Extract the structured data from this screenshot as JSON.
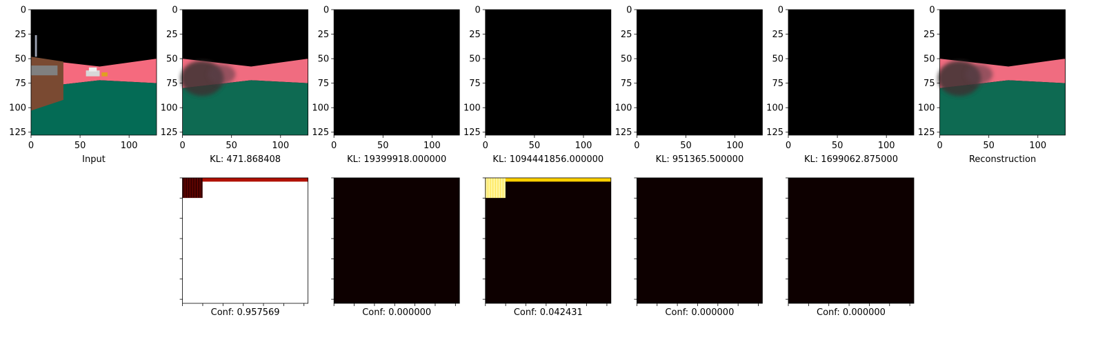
{
  "chart_data": {
    "type": "image_grid",
    "image_panels": [
      {
        "id": "input",
        "caption": "Input",
        "xlim": [
          0,
          128
        ],
        "ylim": [
          128,
          0
        ],
        "xticks": [
          "0",
          "50",
          "100"
        ],
        "yticks": [
          "0",
          "25",
          "50",
          "75",
          "100",
          "125"
        ],
        "content": "scene",
        "colors": {
          "sky": "#000000",
          "band": "#f56a7e",
          "ground": "#046b55",
          "wall": "#7a4a32"
        }
      },
      {
        "id": "recon-1",
        "caption": "KL: 471.868408",
        "xlim": [
          0,
          128
        ],
        "ylim": [
          128,
          0
        ],
        "xticks": [
          "0",
          "50",
          "100"
        ],
        "yticks": [
          "0",
          "25",
          "50",
          "75",
          "100",
          "125"
        ],
        "content": "blurry-scene",
        "colors": {
          "sky": "#000000",
          "band": "#f06c80",
          "ground": "#0e6a52"
        }
      },
      {
        "id": "recon-2",
        "caption": "KL: 19399918.000000",
        "xlim": [
          0,
          128
        ],
        "ylim": [
          128,
          0
        ],
        "xticks": [
          "0",
          "50",
          "100"
        ],
        "yticks": [
          "0",
          "25",
          "50",
          "75",
          "100",
          "125"
        ],
        "content": "black",
        "colors": {
          "fill": "#000000"
        }
      },
      {
        "id": "recon-3",
        "caption": "KL: 1094441856.000000",
        "xlim": [
          0,
          128
        ],
        "ylim": [
          128,
          0
        ],
        "xticks": [
          "0",
          "50",
          "100"
        ],
        "yticks": [
          "0",
          "25",
          "50",
          "75",
          "100",
          "125"
        ],
        "content": "black",
        "colors": {
          "fill": "#000000"
        }
      },
      {
        "id": "recon-4",
        "caption": "KL: 951365.500000",
        "xlim": [
          0,
          128
        ],
        "ylim": [
          128,
          0
        ],
        "xticks": [
          "0",
          "50",
          "100"
        ],
        "yticks": [
          "0",
          "25",
          "50",
          "75",
          "100",
          "125"
        ],
        "content": "black",
        "colors": {
          "fill": "#000000"
        }
      },
      {
        "id": "recon-5",
        "caption": "KL: 1699062.875000",
        "xlim": [
          0,
          128
        ],
        "ylim": [
          128,
          0
        ],
        "xticks": [
          "0",
          "50",
          "100"
        ],
        "yticks": [
          "0",
          "25",
          "50",
          "75",
          "100",
          "125"
        ],
        "content": "black",
        "colors": {
          "fill": "#000000"
        }
      },
      {
        "id": "reconstruction",
        "caption": "Reconstruction",
        "xlim": [
          0,
          128
        ],
        "ylim": [
          128,
          0
        ],
        "xticks": [
          "0",
          "50",
          "100"
        ],
        "yticks": [
          "0",
          "25",
          "50",
          "75",
          "100",
          "125"
        ],
        "content": "blurry-scene",
        "colors": {
          "sky": "#000000",
          "band": "#f06c80",
          "ground": "#0e6a52"
        }
      }
    ],
    "confidence_panels": [
      {
        "id": "conf-1",
        "caption": "Conf: 0.957569",
        "value": 0.957569,
        "content": "white-with-dark-corner",
        "colors": {
          "background": "#ffffff",
          "corner": "#3a0000",
          "stripe": "#b01000"
        }
      },
      {
        "id": "conf-2",
        "caption": "Conf: 0.000000",
        "value": 0.0,
        "content": "dark",
        "colors": {
          "background": "#0d0000"
        }
      },
      {
        "id": "conf-3",
        "caption": "Conf: 0.042431",
        "value": 0.042431,
        "content": "dark-with-bright-corner",
        "colors": {
          "background": "#0d0000",
          "corner": "#fff6a0",
          "stripe": "#ffd000"
        }
      },
      {
        "id": "conf-4",
        "caption": "Conf: 0.000000",
        "value": 0.0,
        "content": "dark",
        "colors": {
          "background": "#0d0000"
        }
      },
      {
        "id": "conf-5",
        "caption": "Conf: 0.000000",
        "value": 0.0,
        "content": "dark",
        "colors": {
          "background": "#0d0000"
        }
      }
    ],
    "colormap": "hot",
    "grid": false
  }
}
